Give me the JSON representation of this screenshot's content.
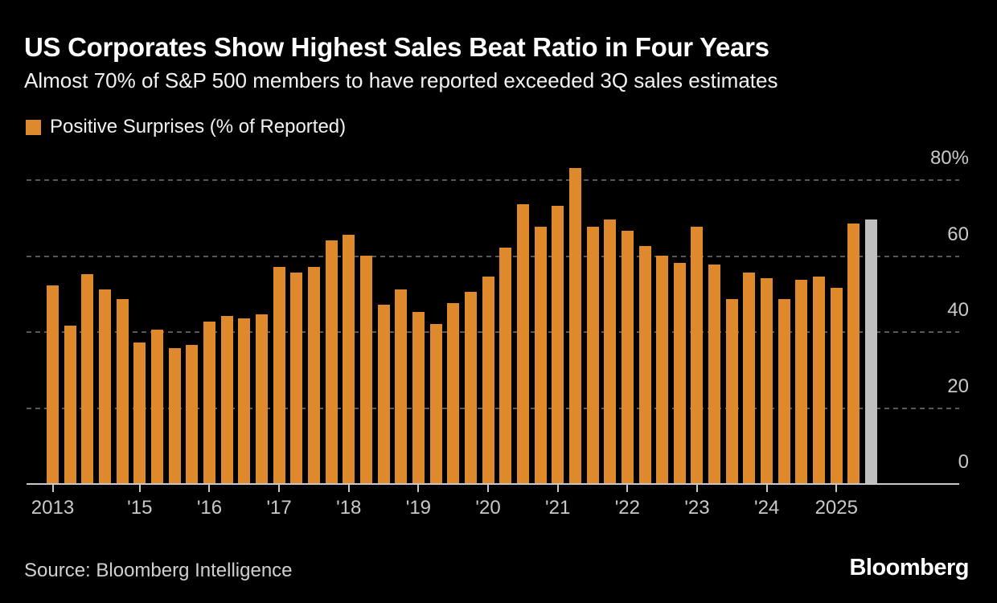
{
  "title": "US Corporates Show Highest Sales Beat Ratio in Four Years",
  "subtitle": "Almost 70% of S&P 500 members to have reported exceeded 3Q sales estimates",
  "legend": {
    "label": "Positive Surprises (% of Reported)",
    "swatch_color": "#de8a2c"
  },
  "source": "Source: Bloomberg Intelligence",
  "logo": "Bloomberg",
  "colors": {
    "background": "#000000",
    "bar": "#de8a2c",
    "last_bar": "#bfbfbf",
    "gridline": "#585858",
    "axis": "#c7c7c7",
    "axis_text": "#c9c9c9",
    "text": "#ffffff"
  },
  "chart_data": {
    "type": "bar",
    "title": "US Corporates Show Highest Sales Beat Ratio in Four Years",
    "subtitle": "Almost 70% of S&P 500 members to have reported exceeded 3Q sales estimates",
    "series_name": "Positive Surprises (% of Reported)",
    "unit": "%",
    "grid": "horizontal-dashed",
    "legend_position": "top-left",
    "ylim": [
      0,
      80
    ],
    "yticks": [
      0,
      20,
      40,
      60,
      80
    ],
    "ytick_labels": [
      "0",
      "20",
      "40",
      "60",
      "80%"
    ],
    "yaxis_side": "right",
    "x": [
      "2013 Q4",
      "2014 Q1",
      "2014 Q2",
      "2014 Q3",
      "2014 Q4",
      "2015 Q1",
      "2015 Q2",
      "2015 Q3",
      "2015 Q4",
      "2016 Q1",
      "2016 Q2",
      "2016 Q3",
      "2016 Q4",
      "2017 Q1",
      "2017 Q2",
      "2017 Q3",
      "2017 Q4",
      "2018 Q1",
      "2018 Q2",
      "2018 Q3",
      "2018 Q4",
      "2019 Q1",
      "2019 Q2",
      "2019 Q3",
      "2019 Q4",
      "2020 Q1",
      "2020 Q2",
      "2020 Q3",
      "2020 Q4",
      "2021 Q1",
      "2021 Q2",
      "2021 Q3",
      "2021 Q4",
      "2022 Q1",
      "2022 Q2",
      "2022 Q3",
      "2022 Q4",
      "2023 Q1",
      "2023 Q2",
      "2023 Q3",
      "2023 Q4",
      "2024 Q1",
      "2024 Q2",
      "2024 Q3",
      "2024 Q4",
      "2025 Q1",
      "2025 Q2",
      "2025 Q3"
    ],
    "values": [
      52,
      41.5,
      55,
      51,
      48.5,
      37,
      40.5,
      35.5,
      36.5,
      42.5,
      44,
      43.5,
      44.5,
      57,
      55.5,
      57,
      64,
      65.5,
      60,
      47,
      51,
      45,
      42,
      47.5,
      50.5,
      54.5,
      62,
      73.5,
      67.5,
      73,
      83,
      67.5,
      69.5,
      66.5,
      62.5,
      60,
      58,
      67.5,
      57.5,
      48.5,
      55.5,
      54,
      48.5,
      53.5,
      54.5,
      51.5,
      68.5,
      69.5
    ],
    "last_bar_highlighted": true,
    "highlight_note": "last bar (2025 Q3, in progress) drawn in gray",
    "xticks": [
      {
        "index": 0,
        "label": "2013"
      },
      {
        "index": 5,
        "label": "'15"
      },
      {
        "index": 9,
        "label": "'16"
      },
      {
        "index": 13,
        "label": "'17"
      },
      {
        "index": 17,
        "label": "'18"
      },
      {
        "index": 21,
        "label": "'19"
      },
      {
        "index": 25,
        "label": "'20"
      },
      {
        "index": 29,
        "label": "'21"
      },
      {
        "index": 33,
        "label": "'22"
      },
      {
        "index": 37,
        "label": "'23"
      },
      {
        "index": 41,
        "label": "'24"
      },
      {
        "index": 45,
        "label": "2025"
      }
    ]
  }
}
